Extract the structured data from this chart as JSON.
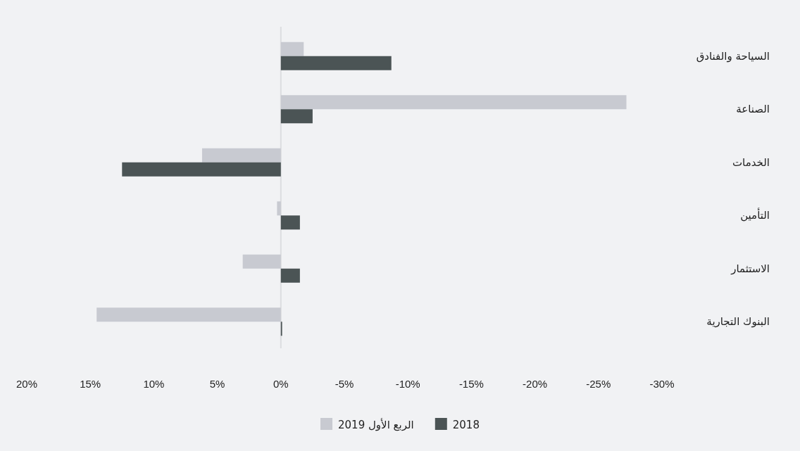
{
  "chart_data": {
    "type": "bar",
    "orientation": "horizontal",
    "categories": [
      "السياحة والفنادق",
      "الصناعة",
      "الخدمات",
      "التأمين",
      "الاستثمار",
      "البنوك التجارية"
    ],
    "series": [
      {
        "name": "الربع الأول 2019",
        "color": "#c8cad1",
        "values": [
          -1.8,
          -27.2,
          6.2,
          0.3,
          3.0,
          14.5
        ]
      },
      {
        "name": "2018",
        "color": "#4b5455",
        "values": [
          -8.7,
          -2.5,
          12.5,
          -1.5,
          -1.5,
          -0.1
        ]
      }
    ],
    "xlim": [
      20,
      -30
    ],
    "xticks": [
      {
        "value": 20,
        "label": "20%"
      },
      {
        "value": 15,
        "label": "15%"
      },
      {
        "value": 10,
        "label": "10%"
      },
      {
        "value": 5,
        "label": "5%"
      },
      {
        "value": 0,
        "label": "0%"
      },
      {
        "value": -5,
        "label": "-5%"
      },
      {
        "value": -10,
        "label": "-10%"
      },
      {
        "value": -15,
        "label": "-15%"
      },
      {
        "value": -20,
        "label": "-20%"
      },
      {
        "value": -25,
        "label": "-25%"
      },
      {
        "value": -30,
        "label": "-30%"
      }
    ],
    "ref_lines": [
      {
        "axis": "x",
        "value": 0,
        "color": "#dcdde0"
      }
    ],
    "legend": "bottom"
  }
}
